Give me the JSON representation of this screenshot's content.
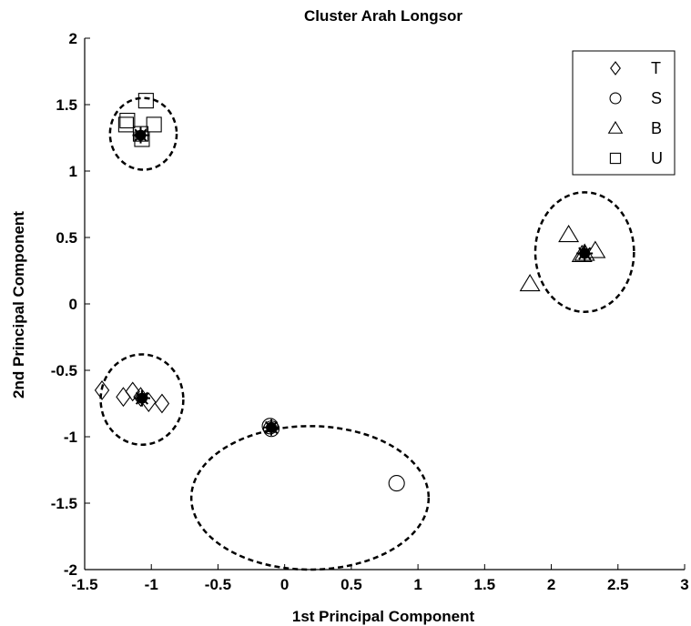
{
  "chart_data": {
    "type": "scatter",
    "title": "Cluster Arah Longsor",
    "xlabel": "1st Principal Component",
    "ylabel": "2nd Principal Component",
    "xlim": [
      -1.5,
      3
    ],
    "ylim": [
      -2,
      2
    ],
    "xticks": [
      -1.5,
      -1,
      -0.5,
      0,
      0.5,
      1,
      1.5,
      2,
      2.5,
      3
    ],
    "xtick_labels": [
      "-1.5",
      "-1",
      "-0.5",
      "0",
      "0.5",
      "1",
      "1.5",
      "2",
      "2.5",
      "3"
    ],
    "yticks": [
      -2,
      -1.5,
      -1,
      -0.5,
      0,
      0.5,
      1,
      1.5,
      2
    ],
    "ytick_labels": [
      "-2",
      "-1.5",
      "-1",
      "-0.5",
      "0",
      "0.5",
      "1",
      "1.5",
      "2"
    ],
    "grid": false,
    "legend_position": "top-right",
    "series": [
      {
        "name": "T",
        "marker": "diamond",
        "points": [
          [
            -1.37,
            -0.65
          ],
          [
            -1.21,
            -0.7
          ],
          [
            -1.14,
            -0.66
          ],
          [
            -1.08,
            -0.7
          ],
          [
            -1.02,
            -0.74
          ],
          [
            -0.92,
            -0.75
          ]
        ]
      },
      {
        "name": "S",
        "marker": "circle",
        "points": [
          [
            -0.11,
            -0.92
          ],
          [
            -0.1,
            -0.94
          ],
          [
            0.84,
            -1.35
          ]
        ]
      },
      {
        "name": "B",
        "marker": "triangle",
        "points": [
          [
            1.84,
            0.15
          ],
          [
            2.13,
            0.52
          ],
          [
            2.23,
            0.37
          ],
          [
            2.25,
            0.38
          ],
          [
            2.33,
            0.4
          ]
        ]
      },
      {
        "name": "U",
        "marker": "square",
        "points": [
          [
            -1.19,
            1.35
          ],
          [
            -1.18,
            1.38
          ],
          [
            -1.04,
            1.53
          ],
          [
            -1.08,
            1.28
          ],
          [
            -1.07,
            1.24
          ],
          [
            -0.98,
            1.35
          ]
        ]
      }
    ],
    "centroids": [
      [
        -1.07,
        -0.71
      ],
      [
        -0.1,
        -0.93
      ],
      [
        2.25,
        0.38
      ],
      [
        -1.08,
        1.27
      ]
    ],
    "cluster_ellipses": [
      {
        "cx": -1.07,
        "cy": -0.72,
        "rx": 0.31,
        "ry": 0.34
      },
      {
        "cx": 0.19,
        "cy": -1.46,
        "rx": 0.89,
        "ry": 0.54
      },
      {
        "cx": 2.25,
        "cy": 0.39,
        "rx": 0.37,
        "ry": 0.45
      },
      {
        "cx": -1.06,
        "cy": 1.28,
        "rx": 0.25,
        "ry": 0.27
      }
    ],
    "style": {
      "marker_color": "#000000",
      "ellipse_color": "#000000",
      "background": "#ffffff"
    }
  }
}
